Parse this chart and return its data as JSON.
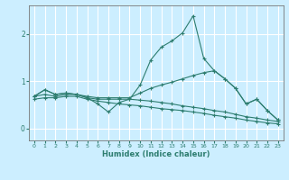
{
  "xlabel": "Humidex (Indice chaleur)",
  "bg_color": "#cceeff",
  "grid_color": "#ffffff",
  "line_color": "#2d7d6f",
  "xlim": [
    -0.5,
    23.5
  ],
  "ylim": [
    -0.25,
    2.6
  ],
  "xticks": [
    0,
    1,
    2,
    3,
    4,
    5,
    6,
    7,
    8,
    9,
    10,
    11,
    12,
    13,
    14,
    15,
    16,
    17,
    18,
    19,
    20,
    21,
    22,
    23
  ],
  "yticks": [
    0,
    1,
    2
  ],
  "lines": [
    {
      "x": [
        0,
        1,
        2,
        3,
        4,
        5,
        6,
        7,
        8,
        9,
        10,
        11,
        12,
        13,
        14,
        15,
        16,
        17,
        18,
        19,
        20,
        21,
        22,
        23
      ],
      "y": [
        0.68,
        0.82,
        0.72,
        0.75,
        0.72,
        0.65,
        0.52,
        0.35,
        0.55,
        0.62,
        0.92,
        1.45,
        1.72,
        1.85,
        2.02,
        2.38,
        1.48,
        1.22,
        1.05,
        0.85,
        0.52,
        0.62,
        0.38,
        0.18
      ]
    },
    {
      "x": [
        0,
        1,
        2,
        3,
        4,
        5,
        6,
        7,
        8,
        9,
        10,
        11,
        12,
        13,
        14,
        15,
        16,
        17,
        18,
        19,
        20,
        21,
        22,
        23
      ],
      "y": [
        0.68,
        0.82,
        0.72,
        0.75,
        0.72,
        0.68,
        0.65,
        0.65,
        0.65,
        0.65,
        0.75,
        0.85,
        0.92,
        0.98,
        1.05,
        1.12,
        1.18,
        1.22,
        1.05,
        0.85,
        0.52,
        0.62,
        0.38,
        0.18
      ]
    },
    {
      "x": [
        0,
        1,
        2,
        3,
        4,
        5,
        6,
        7,
        8,
        9,
        10,
        11,
        12,
        13,
        14,
        15,
        16,
        17,
        18,
        19,
        20,
        21,
        22,
        23
      ],
      "y": [
        0.68,
        0.72,
        0.68,
        0.72,
        0.72,
        0.65,
        0.62,
        0.62,
        0.62,
        0.62,
        0.6,
        0.58,
        0.55,
        0.52,
        0.48,
        0.45,
        0.42,
        0.38,
        0.35,
        0.3,
        0.25,
        0.22,
        0.18,
        0.15
      ]
    },
    {
      "x": [
        0,
        1,
        2,
        3,
        4,
        5,
        6,
        7,
        8,
        9,
        10,
        11,
        12,
        13,
        14,
        15,
        16,
        17,
        18,
        19,
        20,
        21,
        22,
        23
      ],
      "y": [
        0.62,
        0.65,
        0.65,
        0.68,
        0.68,
        0.62,
        0.58,
        0.55,
        0.52,
        0.5,
        0.48,
        0.45,
        0.42,
        0.4,
        0.38,
        0.35,
        0.32,
        0.28,
        0.25,
        0.22,
        0.18,
        0.15,
        0.12,
        0.1
      ]
    }
  ]
}
